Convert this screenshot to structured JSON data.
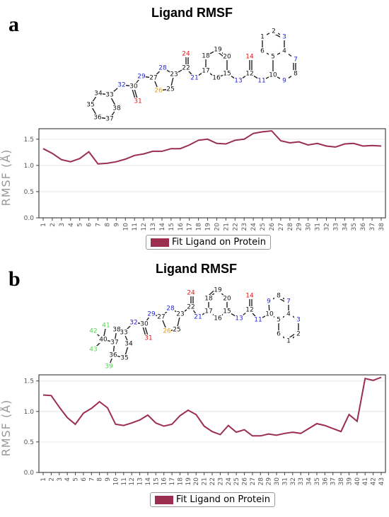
{
  "colors": {
    "series": "#9b2d4e",
    "atom_black": "#111111",
    "atom_blue": "#2424d8",
    "atom_red": "#e01818",
    "atom_orange": "#e8a020",
    "atom_green": "#55d555"
  },
  "panels": [
    {
      "letter": "a",
      "title": "Ligand RMSF",
      "legend": "Fit Ligand on Protein",
      "ylabel": "RMSF (Å)"
    },
    {
      "letter": "b",
      "title": "Ligand RMSF",
      "legend": "Fit Ligand on Protein",
      "ylabel": "RMSF (Å)"
    }
  ],
  "chart_data": [
    {
      "type": "line",
      "title": "Ligand RMSF",
      "xlabel": "",
      "ylabel": "RMSF (Å)",
      "x": [
        1,
        2,
        3,
        4,
        5,
        6,
        7,
        8,
        9,
        10,
        11,
        12,
        13,
        14,
        15,
        16,
        17,
        18,
        19,
        20,
        21,
        22,
        23,
        24,
        25,
        26,
        27,
        28,
        29,
        30,
        31,
        32,
        33,
        34,
        35,
        36,
        37,
        38
      ],
      "series": [
        {
          "name": "Fit Ligand on Protein",
          "values": [
            1.32,
            1.23,
            1.11,
            1.07,
            1.13,
            1.26,
            1.03,
            1.04,
            1.07,
            1.12,
            1.19,
            1.22,
            1.27,
            1.27,
            1.32,
            1.32,
            1.39,
            1.48,
            1.5,
            1.42,
            1.41,
            1.48,
            1.5,
            1.61,
            1.64,
            1.66,
            1.47,
            1.43,
            1.45,
            1.39,
            1.42,
            1.37,
            1.35,
            1.41,
            1.42,
            1.37,
            1.38,
            1.37
          ]
        }
      ],
      "ylim": [
        0,
        1.7
      ],
      "yticks": [
        0.0,
        0.5,
        1.0,
        1.5
      ],
      "ytick_labels": [
        "0.0",
        "0.5",
        "1.0",
        "1.5"
      ],
      "grid": true,
      "legend_position": "bottom-center"
    },
    {
      "type": "line",
      "title": "Ligand RMSF",
      "xlabel": "",
      "ylabel": "RMSF (Å)",
      "x": [
        1,
        2,
        3,
        4,
        5,
        6,
        7,
        8,
        9,
        10,
        11,
        12,
        13,
        14,
        15,
        16,
        17,
        18,
        19,
        20,
        21,
        22,
        23,
        24,
        25,
        26,
        27,
        28,
        29,
        30,
        31,
        32,
        33,
        34,
        35,
        36,
        37,
        38,
        39,
        40,
        41,
        42,
        43
      ],
      "series": [
        {
          "name": "Fit Ligand on Protein",
          "values": [
            1.27,
            1.26,
            1.07,
            0.9,
            0.79,
            0.97,
            1.05,
            1.16,
            1.06,
            0.79,
            0.77,
            0.81,
            0.86,
            0.94,
            0.81,
            0.76,
            0.79,
            0.93,
            1.02,
            0.95,
            0.76,
            0.67,
            0.62,
            0.77,
            0.66,
            0.7,
            0.6,
            0.6,
            0.63,
            0.61,
            0.64,
            0.66,
            0.64,
            0.72,
            0.8,
            0.77,
            0.72,
            0.67,
            0.95,
            0.84,
            1.54,
            1.51,
            1.56
          ]
        }
      ],
      "ylim": [
        0,
        1.6
      ],
      "yticks": [
        0.0,
        0.5,
        1.0,
        1.5
      ],
      "ytick_labels": [
        "0.0",
        "0.5",
        "1.0",
        "1.5"
      ],
      "grid": true,
      "legend_position": "bottom-center"
    }
  ],
  "molecule_a": {
    "atoms": [
      {
        "id": "1",
        "color": "black"
      },
      {
        "id": "2",
        "color": "black"
      },
      {
        "id": "3",
        "color": "blue"
      },
      {
        "id": "4",
        "color": "black"
      },
      {
        "id": "5",
        "color": "black"
      },
      {
        "id": "6",
        "color": "black"
      },
      {
        "id": "7",
        "color": "blue"
      },
      {
        "id": "8",
        "color": "black"
      },
      {
        "id": "9",
        "color": "blue"
      },
      {
        "id": "10",
        "color": "black"
      },
      {
        "id": "11",
        "color": "blue"
      },
      {
        "id": "12",
        "color": "black"
      },
      {
        "id": "13",
        "color": "blue"
      },
      {
        "id": "14",
        "color": "red"
      },
      {
        "id": "15",
        "color": "black"
      },
      {
        "id": "16",
        "color": "black"
      },
      {
        "id": "17",
        "color": "black"
      },
      {
        "id": "18",
        "color": "black"
      },
      {
        "id": "19",
        "color": "black"
      },
      {
        "id": "20",
        "color": "black"
      },
      {
        "id": "21",
        "color": "blue"
      },
      {
        "id": "22",
        "color": "black"
      },
      {
        "id": "23",
        "color": "black"
      },
      {
        "id": "24",
        "color": "red"
      },
      {
        "id": "25",
        "color": "black"
      },
      {
        "id": "26",
        "color": "orange"
      },
      {
        "id": "27",
        "color": "black"
      },
      {
        "id": "28",
        "color": "blue"
      },
      {
        "id": "29",
        "color": "blue"
      },
      {
        "id": "30",
        "color": "black"
      },
      {
        "id": "31",
        "color": "red"
      },
      {
        "id": "32",
        "color": "blue"
      },
      {
        "id": "33",
        "color": "black"
      },
      {
        "id": "34",
        "color": "black"
      },
      {
        "id": "35",
        "color": "black"
      },
      {
        "id": "36",
        "color": "black"
      },
      {
        "id": "37",
        "color": "black"
      },
      {
        "id": "38",
        "color": "black"
      }
    ]
  },
  "molecule_b": {
    "atoms": [
      {
        "id": "1",
        "color": "black"
      },
      {
        "id": "2",
        "color": "black"
      },
      {
        "id": "3",
        "color": "blue"
      },
      {
        "id": "4",
        "color": "black"
      },
      {
        "id": "5",
        "color": "black"
      },
      {
        "id": "6",
        "color": "black"
      },
      {
        "id": "7",
        "color": "blue"
      },
      {
        "id": "8",
        "color": "black"
      },
      {
        "id": "9",
        "color": "blue"
      },
      {
        "id": "10",
        "color": "black"
      },
      {
        "id": "11",
        "color": "blue"
      },
      {
        "id": "12",
        "color": "black"
      },
      {
        "id": "13",
        "color": "blue"
      },
      {
        "id": "14",
        "color": "red"
      },
      {
        "id": "15",
        "color": "black"
      },
      {
        "id": "16",
        "color": "black"
      },
      {
        "id": "17",
        "color": "black"
      },
      {
        "id": "18",
        "color": "black"
      },
      {
        "id": "19",
        "color": "black"
      },
      {
        "id": "20",
        "color": "black"
      },
      {
        "id": "21",
        "color": "blue"
      },
      {
        "id": "22",
        "color": "black"
      },
      {
        "id": "23",
        "color": "black"
      },
      {
        "id": "24",
        "color": "red"
      },
      {
        "id": "25",
        "color": "black"
      },
      {
        "id": "26",
        "color": "orange"
      },
      {
        "id": "27",
        "color": "black"
      },
      {
        "id": "28",
        "color": "blue"
      },
      {
        "id": "29",
        "color": "blue"
      },
      {
        "id": "30",
        "color": "black"
      },
      {
        "id": "31",
        "color": "red"
      },
      {
        "id": "32",
        "color": "blue"
      },
      {
        "id": "33",
        "color": "black"
      },
      {
        "id": "34",
        "color": "black"
      },
      {
        "id": "35",
        "color": "black"
      },
      {
        "id": "36",
        "color": "black"
      },
      {
        "id": "37",
        "color": "black"
      },
      {
        "id": "38",
        "color": "black"
      },
      {
        "id": "39",
        "color": "green"
      },
      {
        "id": "40",
        "color": "black"
      },
      {
        "id": "41",
        "color": "green"
      },
      {
        "id": "42",
        "color": "green"
      },
      {
        "id": "43",
        "color": "green"
      }
    ]
  }
}
